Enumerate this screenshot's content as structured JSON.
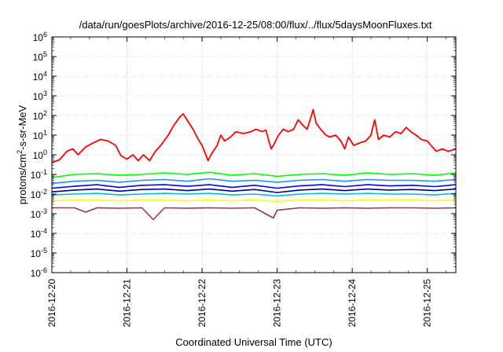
{
  "chart_data": {
    "type": "line",
    "title": "/data/run/goesPlots/archive/2016-12-25/08:00/flux/../flux/5daysMoonFluxes.txt",
    "xlabel": "Coordinated Universal Time (UTC)",
    "ylabel": {
      "prefix": "protons/cm",
      "sup": "2",
      "suffix": "-s-sr-MeV"
    },
    "y_scale": "log",
    "ylim_exp": [
      -6,
      6
    ],
    "y_tick_base": "10",
    "y_tick_exponents": [
      "-6",
      "-5",
      "-4",
      "-3",
      "-2",
      "-1",
      "0",
      "1",
      "2",
      "3",
      "4",
      "5",
      "6"
    ],
    "x_ticks": [
      "2016-12-20",
      "2016-12-21",
      "2016-12-22",
      "2016-12-23",
      "2016-12-24",
      "2016-12-25"
    ],
    "x_range_days": [
      0,
      5.38
    ],
    "grid": true,
    "series": [
      {
        "color": "#ff0000",
        "values": [
          [
            0.0,
            0.4
          ],
          [
            0.1,
            0.55
          ],
          [
            0.2,
            1.5
          ],
          [
            0.28,
            2.0
          ],
          [
            0.35,
            1.0
          ],
          [
            0.45,
            2.5
          ],
          [
            0.55,
            4.0
          ],
          [
            0.65,
            6.0
          ],
          [
            0.75,
            5.0
          ],
          [
            0.85,
            3.0
          ],
          [
            0.92,
            0.9
          ],
          [
            1.0,
            0.6
          ],
          [
            1.08,
            1.0
          ],
          [
            1.15,
            0.5
          ],
          [
            1.22,
            1.0
          ],
          [
            1.3,
            0.5
          ],
          [
            1.38,
            1.5
          ],
          [
            1.45,
            3.0
          ],
          [
            1.55,
            10
          ],
          [
            1.62,
            30
          ],
          [
            1.7,
            80
          ],
          [
            1.75,
            120
          ],
          [
            1.8,
            60
          ],
          [
            1.88,
            20
          ],
          [
            1.95,
            6
          ],
          [
            2.0,
            3
          ],
          [
            2.05,
            1.0
          ],
          [
            2.08,
            0.5
          ],
          [
            2.12,
            1.0
          ],
          [
            2.2,
            3
          ],
          [
            2.25,
            10
          ],
          [
            2.3,
            5
          ],
          [
            2.38,
            8
          ],
          [
            2.45,
            15
          ],
          [
            2.55,
            12
          ],
          [
            2.65,
            15
          ],
          [
            2.72,
            20
          ],
          [
            2.8,
            15
          ],
          [
            2.85,
            18
          ],
          [
            2.92,
            2.0
          ],
          [
            2.95,
            3
          ],
          [
            3.02,
            10
          ],
          [
            3.08,
            20
          ],
          [
            3.15,
            15
          ],
          [
            3.22,
            20
          ],
          [
            3.28,
            60
          ],
          [
            3.35,
            30
          ],
          [
            3.4,
            20
          ],
          [
            3.45,
            80
          ],
          [
            3.48,
            200
          ],
          [
            3.52,
            40
          ],
          [
            3.58,
            20
          ],
          [
            3.65,
            10
          ],
          [
            3.7,
            8
          ],
          [
            3.78,
            10
          ],
          [
            3.85,
            5
          ],
          [
            3.9,
            2.0
          ],
          [
            3.95,
            8
          ],
          [
            4.02,
            3
          ],
          [
            4.1,
            4
          ],
          [
            4.18,
            5
          ],
          [
            4.25,
            10
          ],
          [
            4.3,
            60
          ],
          [
            4.35,
            6
          ],
          [
            4.42,
            10
          ],
          [
            4.5,
            8
          ],
          [
            4.58,
            15
          ],
          [
            4.65,
            12
          ],
          [
            4.72,
            25
          ],
          [
            4.78,
            15
          ],
          [
            4.85,
            10
          ],
          [
            4.92,
            6
          ],
          [
            5.0,
            5
          ],
          [
            5.05,
            3
          ],
          [
            5.12,
            1.5
          ],
          [
            5.2,
            2.0
          ],
          [
            5.28,
            1.5
          ],
          [
            5.38,
            2.0
          ]
        ]
      },
      {
        "color": "#00ff00",
        "values": [
          [
            0.0,
            0.07
          ],
          [
            0.3,
            0.1
          ],
          [
            0.6,
            0.11
          ],
          [
            0.9,
            0.09
          ],
          [
            1.2,
            0.1
          ],
          [
            1.5,
            0.12
          ],
          [
            1.8,
            0.1
          ],
          [
            2.1,
            0.13
          ],
          [
            2.4,
            0.09
          ],
          [
            2.7,
            0.11
          ],
          [
            3.0,
            0.08
          ],
          [
            3.3,
            0.1
          ],
          [
            3.6,
            0.11
          ],
          [
            3.9,
            0.09
          ],
          [
            4.2,
            0.12
          ],
          [
            4.5,
            0.1
          ],
          [
            4.8,
            0.11
          ],
          [
            5.1,
            0.09
          ],
          [
            5.38,
            0.12
          ]
        ]
      },
      {
        "color": "#1e90ff",
        "values": [
          [
            0.0,
            0.035
          ],
          [
            0.3,
            0.045
          ],
          [
            0.6,
            0.05
          ],
          [
            0.9,
            0.04
          ],
          [
            1.2,
            0.05
          ],
          [
            1.5,
            0.055
          ],
          [
            1.8,
            0.045
          ],
          [
            2.1,
            0.06
          ],
          [
            2.4,
            0.045
          ],
          [
            2.7,
            0.05
          ],
          [
            3.0,
            0.04
          ],
          [
            3.3,
            0.05
          ],
          [
            3.6,
            0.055
          ],
          [
            3.9,
            0.045
          ],
          [
            4.2,
            0.055
          ],
          [
            4.5,
            0.05
          ],
          [
            4.8,
            0.05
          ],
          [
            5.1,
            0.045
          ],
          [
            5.38,
            0.055
          ]
        ]
      },
      {
        "color": "#0000ff",
        "values": [
          [
            0.0,
            0.02
          ],
          [
            0.3,
            0.025
          ],
          [
            0.6,
            0.03
          ],
          [
            0.9,
            0.022
          ],
          [
            1.2,
            0.028
          ],
          [
            1.5,
            0.03
          ],
          [
            1.8,
            0.025
          ],
          [
            2.1,
            0.03
          ],
          [
            2.4,
            0.022
          ],
          [
            2.7,
            0.028
          ],
          [
            3.0,
            0.02
          ],
          [
            3.3,
            0.026
          ],
          [
            3.6,
            0.03
          ],
          [
            3.9,
            0.024
          ],
          [
            4.2,
            0.03
          ],
          [
            4.5,
            0.026
          ],
          [
            4.8,
            0.028
          ],
          [
            5.1,
            0.024
          ],
          [
            5.38,
            0.03
          ]
        ]
      },
      {
        "color": "#00008b",
        "values": [
          [
            0.0,
            0.013
          ],
          [
            0.3,
            0.016
          ],
          [
            0.6,
            0.018
          ],
          [
            0.9,
            0.014
          ],
          [
            1.2,
            0.017
          ],
          [
            1.5,
            0.018
          ],
          [
            1.8,
            0.015
          ],
          [
            2.1,
            0.018
          ],
          [
            2.4,
            0.014
          ],
          [
            2.7,
            0.017
          ],
          [
            3.0,
            0.012
          ],
          [
            3.3,
            0.016
          ],
          [
            3.6,
            0.018
          ],
          [
            3.9,
            0.015
          ],
          [
            4.2,
            0.018
          ],
          [
            4.5,
            0.016
          ],
          [
            4.8,
            0.017
          ],
          [
            5.1,
            0.015
          ],
          [
            5.38,
            0.018
          ]
        ]
      },
      {
        "color": "#00bcd4",
        "values": [
          [
            0.0,
            0.009
          ],
          [
            0.3,
            0.01
          ],
          [
            0.6,
            0.011
          ],
          [
            0.9,
            0.009
          ],
          [
            1.2,
            0.01
          ],
          [
            1.5,
            0.011
          ],
          [
            1.8,
            0.01
          ],
          [
            2.1,
            0.011
          ],
          [
            2.4,
            0.009
          ],
          [
            2.7,
            0.01
          ],
          [
            3.0,
            0.008
          ],
          [
            3.3,
            0.01
          ],
          [
            3.6,
            0.011
          ],
          [
            3.9,
            0.01
          ],
          [
            4.2,
            0.011
          ],
          [
            4.5,
            0.01
          ],
          [
            4.8,
            0.01
          ],
          [
            5.1,
            0.009
          ],
          [
            5.38,
            0.011
          ]
        ]
      },
      {
        "color": "#ffff00",
        "values": [
          [
            0.0,
            0.0045
          ],
          [
            0.3,
            0.005
          ],
          [
            0.6,
            0.005
          ],
          [
            0.9,
            0.0045
          ],
          [
            1.2,
            0.005
          ],
          [
            1.5,
            0.005
          ],
          [
            1.8,
            0.0045
          ],
          [
            2.1,
            0.005
          ],
          [
            2.4,
            0.0045
          ],
          [
            2.7,
            0.005
          ],
          [
            3.0,
            0.0042
          ],
          [
            3.3,
            0.005
          ],
          [
            3.6,
            0.005
          ],
          [
            3.9,
            0.0045
          ],
          [
            4.2,
            0.005
          ],
          [
            4.5,
            0.005
          ],
          [
            4.8,
            0.005
          ],
          [
            5.1,
            0.0045
          ],
          [
            5.38,
            0.005
          ]
        ]
      },
      {
        "color": "#8b3a62",
        "values": [
          [
            0.0,
            0.002
          ],
          [
            0.3,
            0.002
          ],
          [
            0.45,
            0.0012
          ],
          [
            0.6,
            0.002
          ],
          [
            0.9,
            0.0019
          ],
          [
            1.2,
            0.002
          ],
          [
            1.35,
            0.0005
          ],
          [
            1.5,
            0.002
          ],
          [
            1.8,
            0.0019
          ],
          [
            2.1,
            0.002
          ],
          [
            2.4,
            0.0019
          ],
          [
            2.7,
            0.002
          ],
          [
            2.95,
            0.0006
          ],
          [
            3.0,
            0.0015
          ],
          [
            3.3,
            0.002
          ],
          [
            3.6,
            0.0019
          ],
          [
            3.9,
            0.002
          ],
          [
            4.2,
            0.0019
          ],
          [
            4.5,
            0.002
          ],
          [
            4.8,
            0.002
          ],
          [
            5.1,
            0.0019
          ],
          [
            5.38,
            0.002
          ]
        ]
      }
    ]
  }
}
